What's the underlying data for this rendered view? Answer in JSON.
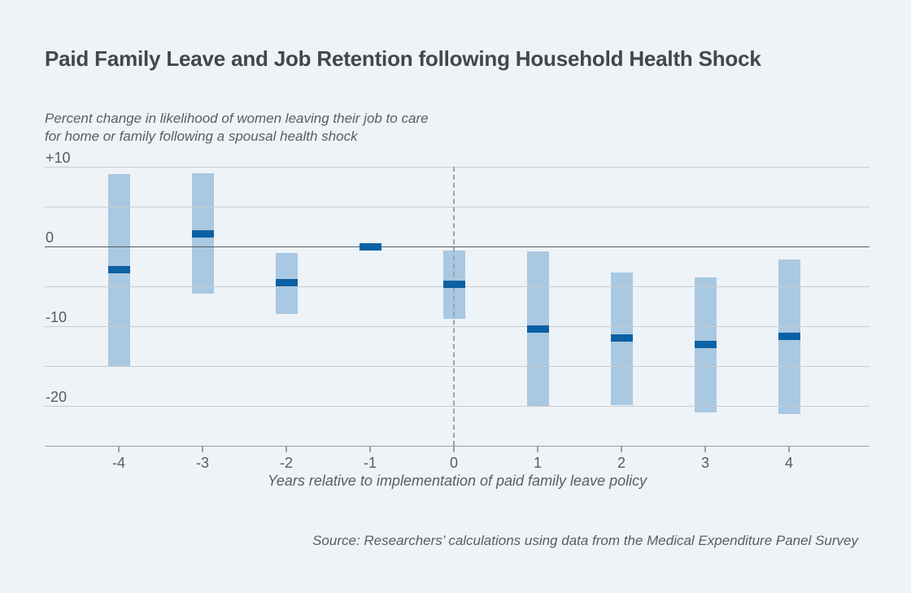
{
  "title": "Paid Family Leave and Job Retention following Household Health Shock",
  "subtitle": {
    "line1": "Percent change in likelihood of women leaving their job to care",
    "line2": "for home or family following a spousal health shock"
  },
  "source": "Source: Researchers’ calculations using data from the Medical Expenditure Panel Survey",
  "colors": {
    "background": "#eef3f8",
    "ci_bar": "#a9c8e1",
    "estimate": "#0c61a4",
    "gridline": "#c8ccd1",
    "zero_line": "#575d64",
    "axis_line": "#979ea5",
    "dashed_line": "#9aa1a8",
    "title_text": "#43474c",
    "muted_text": "#585e64",
    "tick_text": "#565c63"
  },
  "chart_data": {
    "type": "bar",
    "subtype": "interval-bars-with-point-estimates",
    "title": "Paid Family Leave and Job Retention following Household Health Shock",
    "ylabel": "Percent change in likelihood of women leaving their job to care for home or family following a spousal health shock",
    "xlabel": "Years relative to implementation of paid family leave policy",
    "x": [
      -4,
      -3,
      -2,
      -1,
      0,
      1,
      2,
      3,
      4
    ],
    "series": [
      {
        "name": "confidence-interval",
        "type": "interval",
        "low": [
          -15.0,
          -5.9,
          -8.5,
          null,
          -9.1,
          -20.1,
          -19.9,
          -20.8,
          -21.0
        ],
        "high": [
          9.1,
          9.2,
          -0.8,
          null,
          -0.5,
          -0.6,
          -3.3,
          -3.9,
          -1.6
        ]
      },
      {
        "name": "point-estimate",
        "type": "tick",
        "values": [
          -2.9,
          1.6,
          -4.5,
          0.0,
          -4.7,
          -10.4,
          -11.5,
          -12.3,
          -11.3
        ]
      }
    ],
    "ylim": [
      -25,
      10
    ],
    "yticks": [
      10,
      5,
      0,
      -5,
      -10,
      -15,
      -20
    ],
    "ytick_labels": {
      "10": "+10",
      "0": "0",
      "-10": "-10",
      "-20": "-20"
    },
    "reference_line_x": 0,
    "grid": true,
    "legend": false
  }
}
